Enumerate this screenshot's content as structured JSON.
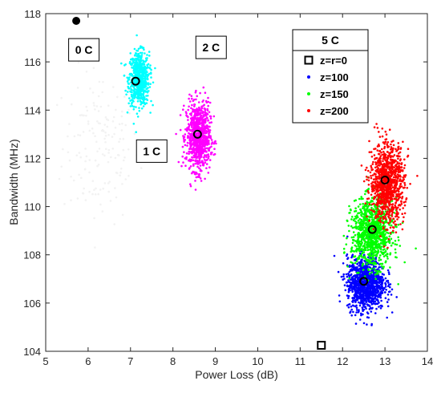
{
  "chart_data": {
    "type": "scatter",
    "xlabel": "Power Loss (dB)",
    "ylabel": "Bandwidth (MHz)",
    "xlim": [
      5,
      14
    ],
    "ylim": [
      104,
      118
    ],
    "x_ticks": [
      "5",
      "6",
      "7",
      "8",
      "9",
      "10",
      "11",
      "12",
      "13",
      "14"
    ],
    "y_ticks": [
      "104",
      "106",
      "108",
      "110",
      "112",
      "114",
      "116",
      "118"
    ],
    "grid": false,
    "legend_position": "top-right",
    "legend_title": "5 C",
    "legend": [
      {
        "label": "z=r=0",
        "marker": "square",
        "color": "#000000"
      },
      {
        "label": "z=100",
        "marker": "dot",
        "color": "#0000ff"
      },
      {
        "label": "z=150",
        "marker": "dot",
        "color": "#00ff00"
      },
      {
        "label": "z=200",
        "marker": "dot",
        "color": "#ff0000"
      }
    ],
    "annotations": [
      {
        "text": "0 C",
        "x": 5.9,
        "y": 116.5
      },
      {
        "text": "1 C",
        "x": 7.5,
        "y": 112.3
      },
      {
        "text": "2 C",
        "x": 8.9,
        "y": 116.6
      }
    ],
    "clusters": [
      {
        "name": "0 C",
        "color": "#f2f2f2",
        "center": [
          6.3,
          112.5
        ],
        "spread": [
          0.45,
          1.6
        ],
        "count": 160
      },
      {
        "name": "1 C",
        "color": "#00ffff",
        "center": [
          7.2,
          115.3
        ],
        "spread": [
          0.12,
          0.55
        ],
        "count": 650
      },
      {
        "name": "2 C",
        "color": "#ff00ff",
        "center": [
          8.6,
          112.9
        ],
        "spread": [
          0.14,
          0.7
        ],
        "count": 850
      },
      {
        "name": "z=100",
        "color": "#0000ff",
        "center": [
          12.55,
          106.8
        ],
        "spread": [
          0.22,
          0.55
        ],
        "count": 1100
      },
      {
        "name": "z=150",
        "color": "#00ff00",
        "center": [
          12.7,
          108.9
        ],
        "spread": [
          0.24,
          0.7
        ],
        "count": 1000
      },
      {
        "name": "z=200",
        "color": "#ff0000",
        "center": [
          13.05,
          111.0
        ],
        "spread": [
          0.2,
          0.8
        ],
        "count": 1000
      }
    ],
    "markers": [
      {
        "name": "0 C",
        "shape": "filled-circle",
        "x": 5.72,
        "y": 117.7
      },
      {
        "name": "1 C",
        "shape": "circle",
        "x": 7.12,
        "y": 115.2
      },
      {
        "name": "2 C",
        "shape": "circle",
        "x": 8.58,
        "y": 113.0
      },
      {
        "name": "z=r=0",
        "shape": "square",
        "x": 11.5,
        "y": 104.25
      },
      {
        "name": "z=100",
        "shape": "circle",
        "x": 12.5,
        "y": 106.9
      },
      {
        "name": "z=150",
        "shape": "circle",
        "x": 12.7,
        "y": 109.05
      },
      {
        "name": "z=200",
        "shape": "circle",
        "x": 13.0,
        "y": 111.1
      }
    ]
  }
}
